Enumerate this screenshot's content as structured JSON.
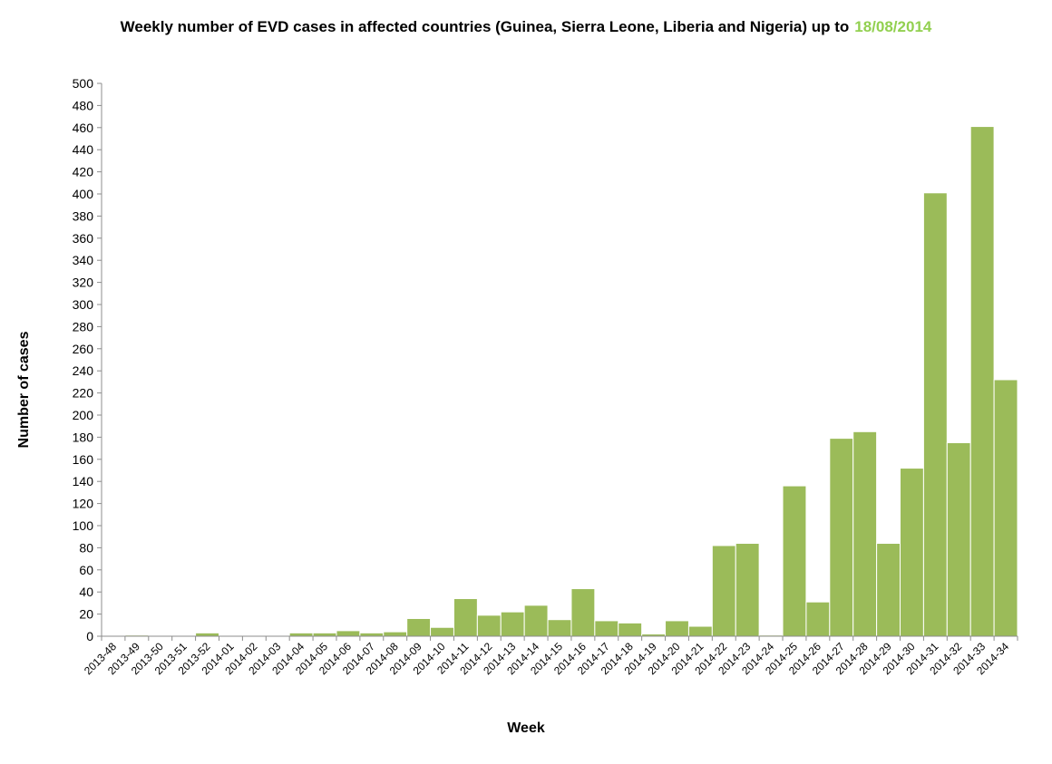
{
  "chart_data": {
    "type": "bar",
    "title": "Weekly number of EVD cases in affected countries (Guinea, Sierra Leone, Liberia and Nigeria) up to",
    "title_date": "18/08/2014",
    "xlabel": "Week",
    "ylabel": "Number of cases",
    "ylim": [
      0,
      500
    ],
    "ytick_step": 20,
    "grid": false,
    "bar_color": "#9bbb59",
    "title_date_color": "#92d050",
    "categories": [
      "2013-48",
      "2013-49",
      "2013-50",
      "2013-51",
      "2013-52",
      "2014-01",
      "2014-02",
      "2014-03",
      "2014-04",
      "2014-05",
      "2014-06",
      "2014-07",
      "2014-08",
      "2014-09",
      "2014-10",
      "2014-11",
      "2014-12",
      "2014-13",
      "2014-14",
      "2014-15",
      "2014-16",
      "2014-17",
      "2014-18",
      "2014-19",
      "2014-20",
      "2014-21",
      "2014-22",
      "2014-23",
      "2014-24",
      "2014-25",
      "2014-26",
      "2014-27",
      "2014-28",
      "2014-29",
      "2014-30",
      "2014-31",
      "2014-32",
      "2014-33",
      "2014-34"
    ],
    "values": [
      0,
      1,
      0,
      0,
      3,
      0,
      0,
      0,
      3,
      3,
      5,
      3,
      4,
      16,
      8,
      34,
      19,
      22,
      28,
      15,
      43,
      14,
      12,
      2,
      14,
      9,
      82,
      84,
      1,
      136,
      31,
      179,
      185,
      84,
      152,
      401,
      175,
      461,
      232
    ]
  }
}
